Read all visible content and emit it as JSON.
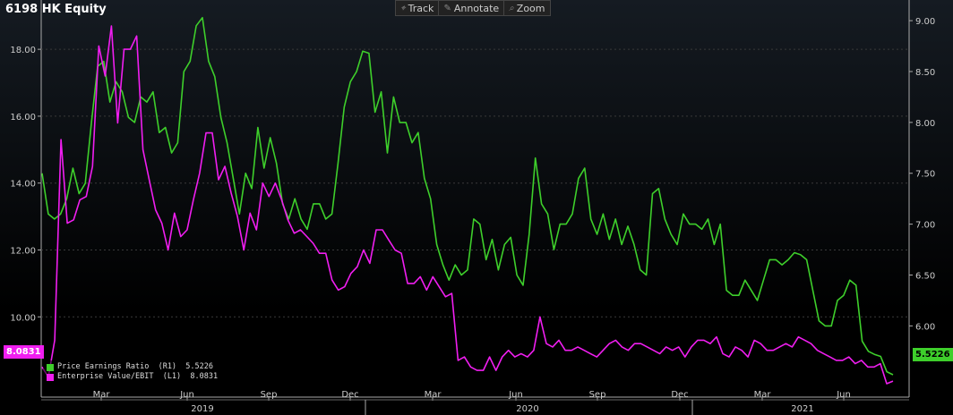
{
  "title": "6198 HK Equity",
  "toolbar": [
    {
      "icon": "crosshair-icon",
      "glyph": "⌖",
      "label": "Track"
    },
    {
      "icon": "pencil-icon",
      "glyph": "✎",
      "label": "Annotate"
    },
    {
      "icon": "magnifier-icon",
      "glyph": "⌕",
      "label": "Zoom"
    }
  ],
  "chart_data": {
    "type": "line",
    "grid": true,
    "left_axis": {
      "ticks": [
        "10.00",
        "12.00",
        "14.00",
        "16.00",
        "18.00"
      ],
      "range": [
        7.6,
        19.1
      ]
    },
    "right_axis": {
      "ticks": [
        "6.00",
        "6.50",
        "7.00",
        "7.50",
        "8.00",
        "8.50",
        "9.00"
      ],
      "range": [
        5.3,
        9.08
      ]
    },
    "x_month_labels": [
      "Mar",
      "Jun",
      "Sep",
      "Dec",
      "Mar",
      "Jun",
      "Sep",
      "Dec",
      "Mar",
      "Jun"
    ],
    "x_year_labels": [
      "2019",
      "2020",
      "2021"
    ],
    "series": [
      {
        "name": "Price Earnings Ratio",
        "legend_text": "Price Earnings Ratio  (R1)  5.5226",
        "axis": "right",
        "color": "#3ecf2b",
        "last_label": "5.5226",
        "values": [
          7.5,
          7.1,
          7.05,
          7.1,
          7.25,
          7.55,
          7.3,
          7.4,
          8.0,
          8.55,
          8.6,
          8.2,
          8.4,
          8.3,
          8.05,
          8.0,
          8.25,
          8.2,
          8.3,
          7.9,
          7.95,
          7.7,
          7.8,
          8.5,
          8.6,
          8.95,
          9.03,
          8.6,
          8.45,
          8.05,
          7.8,
          7.45,
          7.1,
          7.5,
          7.35,
          7.95,
          7.55,
          7.85,
          7.6,
          7.2,
          7.05,
          7.25,
          7.05,
          6.95,
          7.2,
          7.2,
          7.05,
          7.1,
          7.6,
          8.15,
          8.4,
          8.5,
          8.7,
          8.68,
          8.1,
          8.3,
          7.7,
          8.25,
          8.0,
          8.0,
          7.8,
          7.9,
          7.45,
          7.25,
          6.8,
          6.6,
          6.45,
          6.6,
          6.5,
          6.55,
          7.05,
          7.0,
          6.65,
          6.85,
          6.55,
          6.8,
          6.87,
          6.5,
          6.4,
          6.9,
          7.65,
          7.2,
          7.1,
          6.75,
          7.0,
          7.0,
          7.1,
          7.45,
          7.55,
          7.05,
          6.9,
          7.1,
          6.85,
          7.05,
          6.8,
          6.98,
          6.8,
          6.55,
          6.5,
          7.3,
          7.35,
          7.05,
          6.9,
          6.8,
          7.1,
          7.0,
          7.0,
          6.95,
          7.05,
          6.8,
          7.0,
          6.35,
          6.3,
          6.3,
          6.45,
          6.35,
          6.25,
          6.45,
          6.65,
          6.65,
          6.6,
          6.65,
          6.72,
          6.7,
          6.65,
          6.35,
          6.05,
          6.0,
          6.0,
          6.25,
          6.3,
          6.45,
          6.4,
          5.85,
          5.75,
          5.72,
          5.7,
          5.55,
          5.52
        ]
      },
      {
        "name": "Enterprise Value/EBIT",
        "legend_text": "Enterprise Value/EBIT  (L1)  8.0831",
        "axis": "left",
        "color": "#f01ef0",
        "last_label": "8.0831",
        "values": [
          8.5,
          8.2,
          9.3,
          15.3,
          12.8,
          12.9,
          13.5,
          13.6,
          14.5,
          18.1,
          17.2,
          18.7,
          15.8,
          18.0,
          18.0,
          18.4,
          15.0,
          14.1,
          13.2,
          12.8,
          12.0,
          13.1,
          12.4,
          12.6,
          13.5,
          14.3,
          15.5,
          15.5,
          14.1,
          14.5,
          13.7,
          13.0,
          12.0,
          13.1,
          12.6,
          14.0,
          13.6,
          14.0,
          13.5,
          12.9,
          12.5,
          12.6,
          12.4,
          12.2,
          11.9,
          11.9,
          11.1,
          10.8,
          10.9,
          11.3,
          11.5,
          12.0,
          11.6,
          12.6,
          12.6,
          12.3,
          12.0,
          11.9,
          11.0,
          11.0,
          11.2,
          10.8,
          11.2,
          10.9,
          10.6,
          10.7,
          8.7,
          8.8,
          8.5,
          8.4,
          8.4,
          8.8,
          8.4,
          8.8,
          9.0,
          8.8,
          8.9,
          8.8,
          9.0,
          10.0,
          9.2,
          9.1,
          9.3,
          9.0,
          9.0,
          9.1,
          9.0,
          8.9,
          8.8,
          9.0,
          9.2,
          9.3,
          9.1,
          9.0,
          9.2,
          9.2,
          9.1,
          9.0,
          8.9,
          9.1,
          9.0,
          9.1,
          8.8,
          9.1,
          9.3,
          9.3,
          9.2,
          9.4,
          8.9,
          8.8,
          9.1,
          9.0,
          8.8,
          9.3,
          9.2,
          9.0,
          9.0,
          9.1,
          9.2,
          9.1,
          9.4,
          9.3,
          9.2,
          9.0,
          8.9,
          8.8,
          8.7,
          8.7,
          8.8,
          8.6,
          8.7,
          8.5,
          8.5,
          8.6,
          8.0,
          8.08
        ]
      }
    ]
  }
}
